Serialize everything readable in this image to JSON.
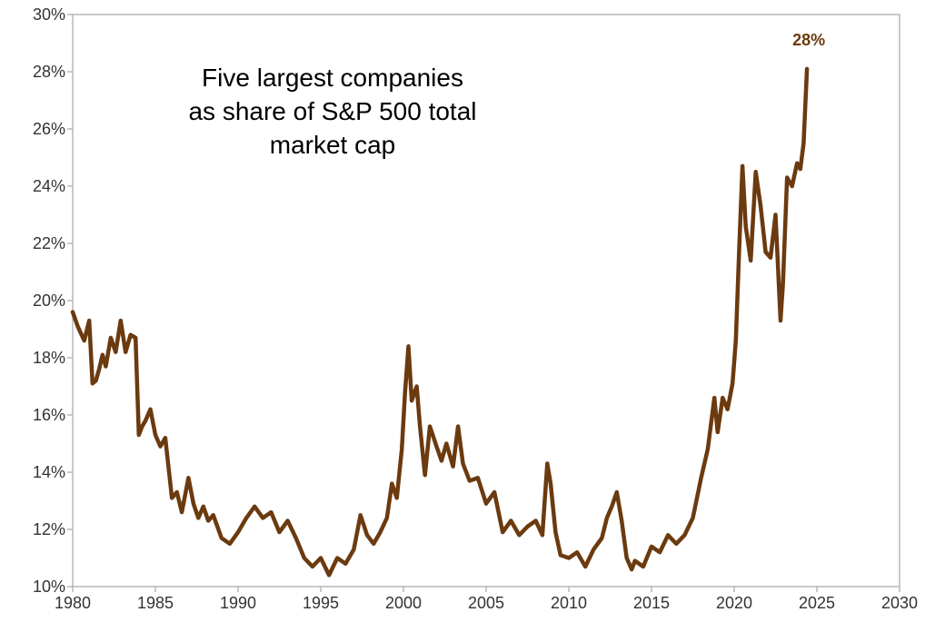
{
  "chart_data": {
    "type": "line",
    "title_lines": [
      "Five largest companies",
      "as share of S&P 500 total",
      "market cap"
    ],
    "xlabel": "",
    "ylabel": "",
    "xlim": [
      1980,
      2030
    ],
    "ylim": [
      10,
      30
    ],
    "x_ticks": [
      1980,
      1985,
      1990,
      1995,
      2000,
      2005,
      2010,
      2015,
      2020,
      2025,
      2030
    ],
    "y_ticks": [
      10,
      12,
      14,
      16,
      18,
      20,
      22,
      24,
      26,
      28,
      30
    ],
    "y_tick_labels": [
      "10%",
      "12%",
      "14%",
      "16%",
      "18%",
      "20%",
      "22%",
      "24%",
      "26%",
      "28%",
      "30%"
    ],
    "grid": false,
    "line_color": "#6b3a0f",
    "annotation": {
      "text": "28%",
      "x": 2024.4,
      "y": 28.1
    },
    "series": [
      {
        "x": [
          1980.0,
          1980.3,
          1980.7,
          1981.0,
          1981.2,
          1981.4,
          1981.6,
          1981.8,
          1982.0,
          1982.3,
          1982.6,
          1982.9,
          1983.2,
          1983.5,
          1983.8,
          1984.0,
          1984.2,
          1984.4,
          1984.7,
          1985.0,
          1985.3,
          1985.6,
          1986.0,
          1986.3,
          1986.6,
          1987.0,
          1987.3,
          1987.6,
          1987.9,
          1988.2,
          1988.5,
          1989.0,
          1989.5,
          1990.0,
          1990.5,
          1991.0,
          1991.5,
          1992.0,
          1992.5,
          1993.0,
          1993.5,
          1994.0,
          1994.5,
          1995.0,
          1995.5,
          1996.0,
          1996.5,
          1997.0,
          1997.4,
          1997.8,
          1998.2,
          1998.6,
          1999.0,
          1999.3,
          1999.6,
          1999.9,
          2000.1,
          2000.3,
          2000.5,
          2000.8,
          2001.0,
          2001.3,
          2001.6,
          2002.0,
          2002.3,
          2002.6,
          2003.0,
          2003.3,
          2003.6,
          2004.0,
          2004.5,
          2005.0,
          2005.5,
          2006.0,
          2006.5,
          2007.0,
          2007.5,
          2008.0,
          2008.4,
          2008.7,
          2008.9,
          2009.2,
          2009.5,
          2010.0,
          2010.5,
          2011.0,
          2011.5,
          2012.0,
          2012.3,
          2012.6,
          2012.9,
          2013.2,
          2013.5,
          2013.8,
          2014.0,
          2014.5,
          2015.0,
          2015.5,
          2016.0,
          2016.5,
          2017.0,
          2017.5,
          2018.0,
          2018.4,
          2018.8,
          2019.0,
          2019.3,
          2019.6,
          2019.9,
          2020.1,
          2020.3,
          2020.5,
          2020.7,
          2021.0,
          2021.3,
          2021.6,
          2021.9,
          2022.2,
          2022.5,
          2022.8,
          2022.95,
          2023.2,
          2023.5,
          2023.8,
          2024.0,
          2024.2,
          2024.4
        ],
        "values": [
          19.6,
          19.1,
          18.6,
          19.3,
          17.1,
          17.2,
          17.6,
          18.1,
          17.7,
          18.7,
          18.2,
          19.3,
          18.2,
          18.8,
          18.7,
          15.3,
          15.6,
          15.8,
          16.2,
          15.3,
          14.9,
          15.2,
          13.1,
          13.3,
          12.6,
          13.8,
          12.9,
          12.4,
          12.8,
          12.3,
          12.5,
          11.7,
          11.5,
          11.9,
          12.4,
          12.8,
          12.4,
          12.6,
          11.9,
          12.3,
          11.7,
          11.0,
          10.7,
          11.0,
          10.4,
          11.0,
          10.8,
          11.3,
          12.5,
          11.8,
          11.5,
          11.9,
          12.4,
          13.6,
          13.1,
          14.8,
          16.8,
          18.4,
          16.5,
          17.0,
          15.6,
          13.9,
          15.6,
          14.9,
          14.4,
          15.0,
          14.2,
          15.6,
          14.3,
          13.7,
          13.8,
          12.9,
          13.3,
          11.9,
          12.3,
          11.8,
          12.1,
          12.3,
          11.8,
          14.3,
          13.6,
          11.9,
          11.1,
          11.0,
          11.2,
          10.7,
          11.3,
          11.7,
          12.4,
          12.8,
          13.3,
          12.3,
          11.0,
          10.6,
          10.9,
          10.7,
          11.4,
          11.2,
          11.8,
          11.5,
          11.8,
          12.4,
          13.8,
          14.8,
          16.6,
          15.4,
          16.6,
          16.2,
          17.1,
          18.6,
          21.8,
          24.7,
          22.6,
          21.4,
          24.5,
          23.3,
          21.7,
          21.5,
          23.0,
          19.3,
          20.6,
          24.3,
          24.0,
          24.8,
          24.6,
          25.5,
          28.1
        ]
      }
    ]
  }
}
